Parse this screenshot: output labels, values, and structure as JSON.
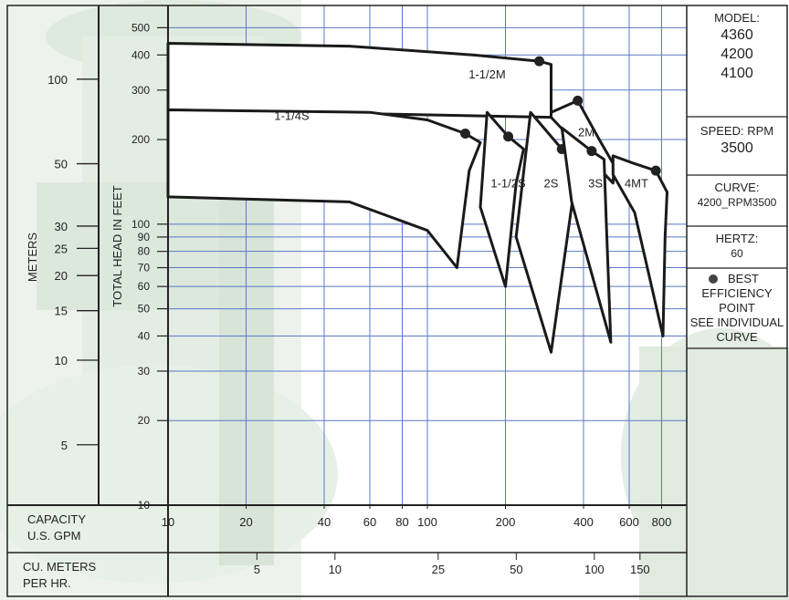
{
  "chart_data": {
    "type": "line",
    "scale": "log-log",
    "ylabel": "TOTAL HEAD IN FEET",
    "meters_label": "METERS",
    "x_axis_gpm": {
      "label_line1": "CAPACITY",
      "label_line2": "U.S. GPM",
      "ticks": [
        10,
        20,
        40,
        60,
        80,
        100,
        200,
        400,
        600,
        800
      ],
      "tick_labels": [
        "10",
        "20",
        "40",
        "60",
        "80",
        "100",
        "200",
        "400",
        "600",
        "800"
      ],
      "range": [
        10,
        1000
      ]
    },
    "x_axis_m3h": {
      "label_line1": "CU. METERS",
      "label_line2": "PER HR.",
      "ticks": [
        5,
        10,
        25,
        50,
        100,
        150
      ],
      "tick_labels": [
        "5",
        "10",
        "25",
        "50",
        "100",
        "150"
      ]
    },
    "y_axis_feet": {
      "ticks": [
        10,
        20,
        30,
        40,
        50,
        60,
        70,
        80,
        90,
        100,
        200,
        300,
        400,
        500
      ],
      "tick_labels": [
        "10",
        "20",
        "30",
        "40",
        "50",
        "60",
        "70",
        "80",
        "90",
        "100",
        "200",
        "300",
        "400",
        "500"
      ],
      "range": [
        10,
        600
      ]
    },
    "y_axis_meters": {
      "ticks": [
        5,
        10,
        15,
        20,
        25,
        30,
        50,
        100
      ],
      "tick_labels": [
        "5",
        "10",
        "15",
        "20",
        "25",
        "30",
        "50",
        "100"
      ]
    },
    "series": [
      {
        "name": "1-1/2M",
        "top": [
          [
            10,
            440
          ],
          [
            50,
            430
          ],
          [
            150,
            400
          ],
          [
            270,
            380
          ],
          [
            300,
            370
          ]
        ],
        "right": [
          [
            300,
            370
          ],
          [
            300,
            240
          ]
        ],
        "bottom": [
          [
            10,
            255
          ],
          [
            300,
            240
          ]
        ],
        "bep": [
          270,
          380
        ]
      },
      {
        "name": "2M",
        "top": [
          [
            300,
            250
          ],
          [
            380,
            275
          ],
          [
            460,
            200
          ],
          [
            525,
            162
          ]
        ],
        "right": [
          [
            525,
            162
          ],
          [
            520,
            140
          ]
        ],
        "bottom": [
          [
            300,
            240
          ],
          [
            520,
            140
          ]
        ],
        "bep": [
          380,
          275
        ]
      },
      {
        "name": "1-1/4S",
        "top": [
          [
            10,
            255
          ],
          [
            60,
            250
          ],
          [
            100,
            235
          ],
          [
            140,
            210
          ],
          [
            160,
            195
          ]
        ],
        "right": [
          [
            160,
            195
          ],
          [
            145,
            155
          ],
          [
            130,
            70
          ]
        ],
        "bottom": [
          [
            10,
            125
          ],
          [
            50,
            120
          ],
          [
            100,
            95
          ],
          [
            130,
            70
          ]
        ],
        "bep": [
          140,
          210
        ]
      },
      {
        "name": "1-1/2S",
        "top": [
          [
            170,
            250
          ],
          [
            205,
            205
          ],
          [
            235,
            185
          ]
        ],
        "right": [
          [
            235,
            185
          ],
          [
            220,
            140
          ],
          [
            200,
            60
          ]
        ],
        "bottom": [
          [
            160,
            115
          ],
          [
            200,
            60
          ]
        ],
        "bep": [
          205,
          205
        ]
      },
      {
        "name": "2S",
        "top": [
          [
            250,
            250
          ],
          [
            330,
            185
          ],
          [
            380,
            165
          ]
        ],
        "right": [
          [
            380,
            165
          ],
          [
            300,
            35
          ]
        ],
        "bottom": [
          [
            220,
            90
          ],
          [
            300,
            35
          ]
        ],
        "bep": [
          330,
          185
        ]
      },
      {
        "name": "3S",
        "top": [
          [
            330,
            220
          ],
          [
            430,
            182
          ],
          [
            480,
            170
          ]
        ],
        "right": [
          [
            480,
            170
          ],
          [
            490,
            100
          ],
          [
            510,
            38
          ]
        ],
        "bottom": [
          [
            360,
            120
          ],
          [
            510,
            38
          ]
        ],
        "bep": [
          430,
          182
        ]
      },
      {
        "name": "4MT",
        "top": [
          [
            520,
            175
          ],
          [
            620,
            165
          ],
          [
            760,
            155
          ],
          [
            840,
            130
          ]
        ],
        "right": [
          [
            840,
            130
          ],
          [
            825,
            90
          ],
          [
            810,
            40
          ]
        ],
        "bottom": [
          [
            520,
            150
          ],
          [
            630,
            110
          ],
          [
            810,
            40
          ]
        ],
        "bep": [
          760,
          155
        ]
      }
    ],
    "grid": true
  },
  "sidebar": {
    "model_label": "MODEL:",
    "models": [
      "4360",
      "4200",
      "4100"
    ],
    "speed_label": "SPEED: RPM",
    "speed_value": "3500",
    "curve_label": "CURVE:",
    "curve_value": "4200_RPM3500",
    "hertz_label": "HERTZ:",
    "hertz_value": "60",
    "bep_line1": "BEST",
    "bep_line2": "EFFICIENCY",
    "bep_line3": "POINT",
    "bep_line4": "SEE INDIVIDUAL",
    "bep_line5": "CURVE"
  },
  "colors": {
    "grid": "#5a78c8",
    "curve": "#1a1a1a",
    "background_tint": "#c9dcc9",
    "frame": "#222222"
  }
}
